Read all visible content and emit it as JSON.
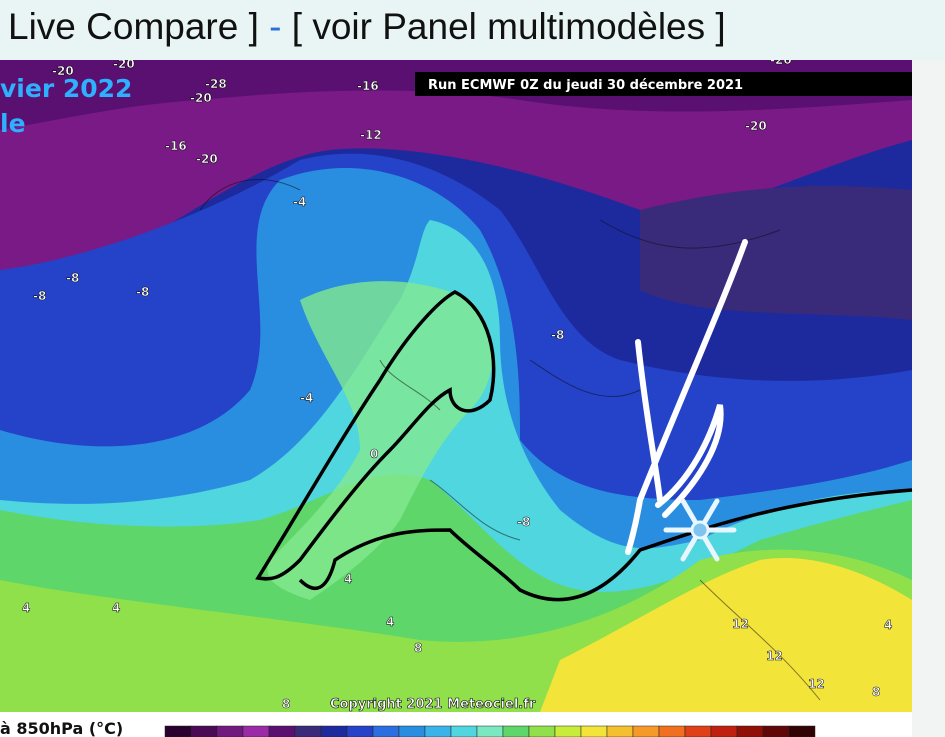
{
  "header": {
    "parts": [
      "Live Compare ]",
      "-",
      "[ voir Panel multimodèles ]"
    ]
  },
  "map": {
    "date_fragment": "vier 2022",
    "subtitle_fragment": "le",
    "run_label": "Run ECMWF 0Z du jeudi 30 décembre 2021",
    "copyright": "Copyright 2021 Meteociel.fr",
    "contour_labels": [
      "-20",
      "-20",
      "-20",
      "-28",
      "-16",
      "-16",
      "-20",
      "-12",
      "-20",
      "-20",
      "-4",
      "-8",
      "-8",
      "-8",
      "-8",
      "-4",
      "0",
      "-8",
      "4",
      "4",
      "4",
      "4",
      "4",
      "8",
      "8",
      "12",
      "12",
      "12",
      "8"
    ]
  },
  "legend": {
    "label": "à 850hPa (°C)"
  }
}
